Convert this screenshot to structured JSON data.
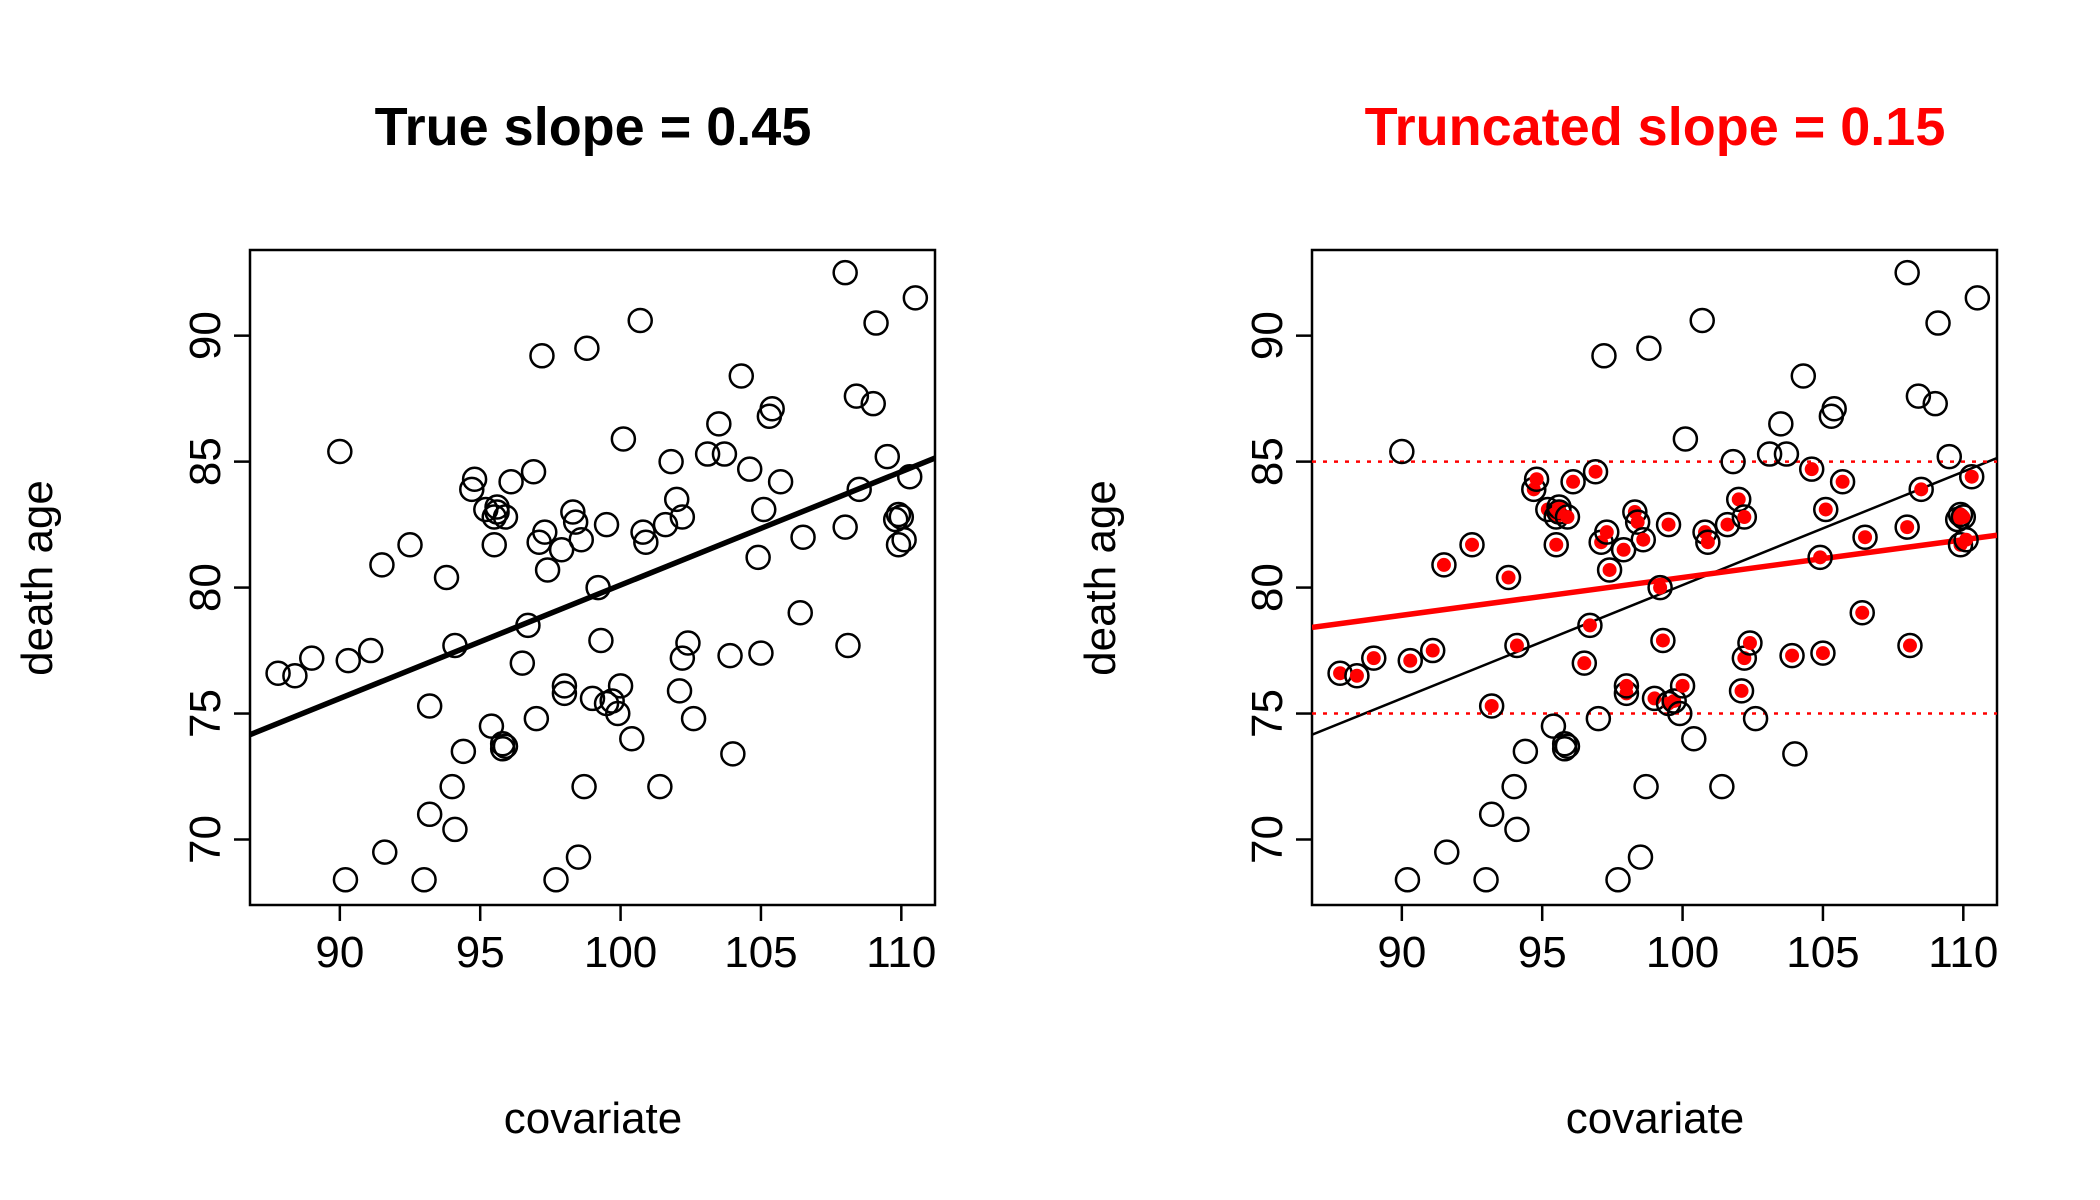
{
  "chart_data": [
    {
      "type": "scatter",
      "title": "True slope = 0.45",
      "title_color": "#000000",
      "xlabel": "covariate",
      "ylabel": "death age",
      "xlim": [
        86.8,
        111.2
      ],
      "ylim": [
        67.4,
        93.4
      ],
      "xticks": [
        90,
        95,
        100,
        105,
        110
      ],
      "yticks": [
        70,
        75,
        80,
        85,
        90
      ],
      "grid": false,
      "series": [
        {
          "x": [
            87.8,
            88.4,
            89.0,
            90.0,
            90.2,
            90.3,
            91.1,
            91.5,
            91.6,
            92.5,
            93.0,
            93.2,
            93.2,
            93.8,
            94.0,
            94.1,
            94.1,
            94.4,
            94.7,
            94.8,
            95.2,
            95.4,
            95.5,
            95.5,
            95.6,
            95.6,
            95.8,
            95.8,
            95.9,
            95.9,
            96.1,
            96.5,
            96.7,
            96.9,
            97.0,
            97.1,
            97.2,
            97.3,
            97.4,
            97.7,
            97.9,
            98.0,
            98.0,
            98.3,
            98.4,
            98.5,
            98.6,
            98.7,
            98.8,
            99.0,
            99.2,
            99.3,
            99.5,
            99.5,
            99.7,
            99.9,
            100.0,
            100.1,
            100.4,
            100.7,
            100.8,
            100.9,
            101.4,
            101.6,
            101.8,
            102.0,
            102.1,
            102.2,
            102.2,
            102.4,
            102.6,
            103.1,
            103.5,
            103.7,
            103.9,
            104.0,
            104.3,
            104.6,
            104.9,
            105.0,
            105.1,
            105.3,
            105.4,
            105.7,
            106.4,
            106.5,
            108.0,
            108.0,
            108.1,
            108.4,
            108.5,
            109.0,
            109.1,
            109.5,
            109.8,
            109.9,
            109.9,
            110.0,
            110.1,
            110.3,
            110.5
          ],
          "y": [
            76.6,
            76.5,
            77.2,
            85.4,
            68.4,
            77.1,
            77.5,
            80.9,
            69.5,
            81.7,
            68.4,
            71.0,
            75.3,
            80.4,
            72.1,
            70.4,
            77.7,
            73.5,
            83.9,
            84.3,
            83.1,
            74.5,
            82.8,
            81.7,
            83.2,
            83.0,
            73.8,
            73.6,
            73.7,
            82.8,
            84.2,
            77.0,
            78.5,
            84.6,
            74.8,
            81.8,
            89.2,
            82.2,
            80.7,
            68.4,
            81.5,
            75.8,
            76.1,
            83.0,
            82.6,
            69.3,
            81.9,
            72.1,
            89.5,
            75.6,
            80.0,
            77.9,
            82.5,
            75.4,
            75.5,
            75.0,
            76.1,
            85.9,
            74.0,
            90.6,
            82.2,
            81.8,
            72.1,
            82.5,
            85.0,
            83.5,
            75.9,
            82.8,
            77.2,
            77.8,
            74.8,
            85.3,
            86.5,
            85.3,
            77.3,
            73.4,
            88.4,
            84.7,
            81.2,
            77.4,
            83.1,
            86.8,
            87.1,
            84.2,
            79.0,
            82.0,
            92.5,
            82.4,
            77.7,
            87.6,
            83.9,
            87.3,
            90.5,
            85.2,
            82.7,
            81.7,
            82.9,
            82.8,
            81.9,
            84.4,
            91.5
          ],
          "style": "open-circle",
          "color": "#000000"
        }
      ],
      "lines": [
        {
          "type": "regression",
          "slope": 0.45,
          "intercept": 35.1,
          "color": "#000000",
          "width": "thick"
        }
      ]
    },
    {
      "type": "scatter",
      "title": "Truncated slope = 0.15",
      "title_color": "#ff0000",
      "xlabel": "covariate",
      "ylabel": "death age",
      "xlim": [
        86.8,
        111.2
      ],
      "ylim": [
        67.4,
        93.4
      ],
      "xticks": [
        90,
        95,
        100,
        105,
        110
      ],
      "yticks": [
        70,
        75,
        80,
        85,
        90
      ],
      "grid": false,
      "series": [
        {
          "x": [
            87.8,
            88.4,
            89.0,
            90.0,
            90.2,
            90.3,
            91.1,
            91.5,
            91.6,
            92.5,
            93.0,
            93.2,
            93.2,
            93.8,
            94.0,
            94.1,
            94.1,
            94.4,
            94.7,
            94.8,
            95.2,
            95.4,
            95.5,
            95.5,
            95.6,
            95.6,
            95.8,
            95.8,
            95.9,
            95.9,
            96.1,
            96.5,
            96.7,
            96.9,
            97.0,
            97.1,
            97.2,
            97.3,
            97.4,
            97.7,
            97.9,
            98.0,
            98.0,
            98.3,
            98.4,
            98.5,
            98.6,
            98.7,
            98.8,
            99.0,
            99.2,
            99.3,
            99.5,
            99.5,
            99.7,
            99.9,
            100.0,
            100.1,
            100.4,
            100.7,
            100.8,
            100.9,
            101.4,
            101.6,
            101.8,
            102.0,
            102.1,
            102.2,
            102.2,
            102.4,
            102.6,
            103.1,
            103.5,
            103.7,
            103.9,
            104.0,
            104.3,
            104.6,
            104.9,
            105.0,
            105.1,
            105.3,
            105.4,
            105.7,
            106.4,
            106.5,
            108.0,
            108.0,
            108.1,
            108.4,
            108.5,
            109.0,
            109.1,
            109.5,
            109.8,
            109.9,
            109.9,
            110.0,
            110.1,
            110.3,
            110.5
          ],
          "y": [
            76.6,
            76.5,
            77.2,
            85.4,
            68.4,
            77.1,
            77.5,
            80.9,
            69.5,
            81.7,
            68.4,
            71.0,
            75.3,
            80.4,
            72.1,
            70.4,
            77.7,
            73.5,
            83.9,
            84.3,
            83.1,
            74.5,
            82.8,
            81.7,
            83.2,
            83.0,
            73.8,
            73.6,
            73.7,
            82.8,
            84.2,
            77.0,
            78.5,
            84.6,
            74.8,
            81.8,
            89.2,
            82.2,
            80.7,
            68.4,
            81.5,
            75.8,
            76.1,
            83.0,
            82.6,
            69.3,
            81.9,
            72.1,
            89.5,
            75.6,
            80.0,
            77.9,
            82.5,
            75.4,
            75.5,
            75.0,
            76.1,
            85.9,
            74.0,
            90.6,
            82.2,
            81.8,
            72.1,
            82.5,
            85.0,
            83.5,
            75.9,
            82.8,
            77.2,
            77.8,
            74.8,
            85.3,
            86.5,
            85.3,
            77.3,
            73.4,
            88.4,
            84.7,
            81.2,
            77.4,
            83.1,
            86.8,
            87.1,
            84.2,
            79.0,
            82.0,
            92.5,
            82.4,
            77.7,
            87.6,
            83.9,
            87.3,
            90.5,
            85.2,
            82.7,
            81.7,
            82.9,
            82.8,
            81.9,
            84.4,
            91.5
          ],
          "style": "open-circle",
          "color": "#000000",
          "highlight": {
            "y_between": [
              75,
              85
            ],
            "style": "filled-dot",
            "color": "#ff0000"
          }
        }
      ],
      "lines": [
        {
          "type": "regression",
          "slope": 0.45,
          "intercept": 35.1,
          "color": "#000000",
          "width": "thin"
        },
        {
          "type": "regression",
          "slope": 0.15,
          "intercept": 65.4,
          "color": "#ff0000",
          "width": "thick"
        },
        {
          "type": "hline",
          "y": 85,
          "color": "#ff0000",
          "style": "dotted"
        },
        {
          "type": "hline",
          "y": 75,
          "color": "#ff0000",
          "style": "dotted"
        }
      ]
    }
  ]
}
